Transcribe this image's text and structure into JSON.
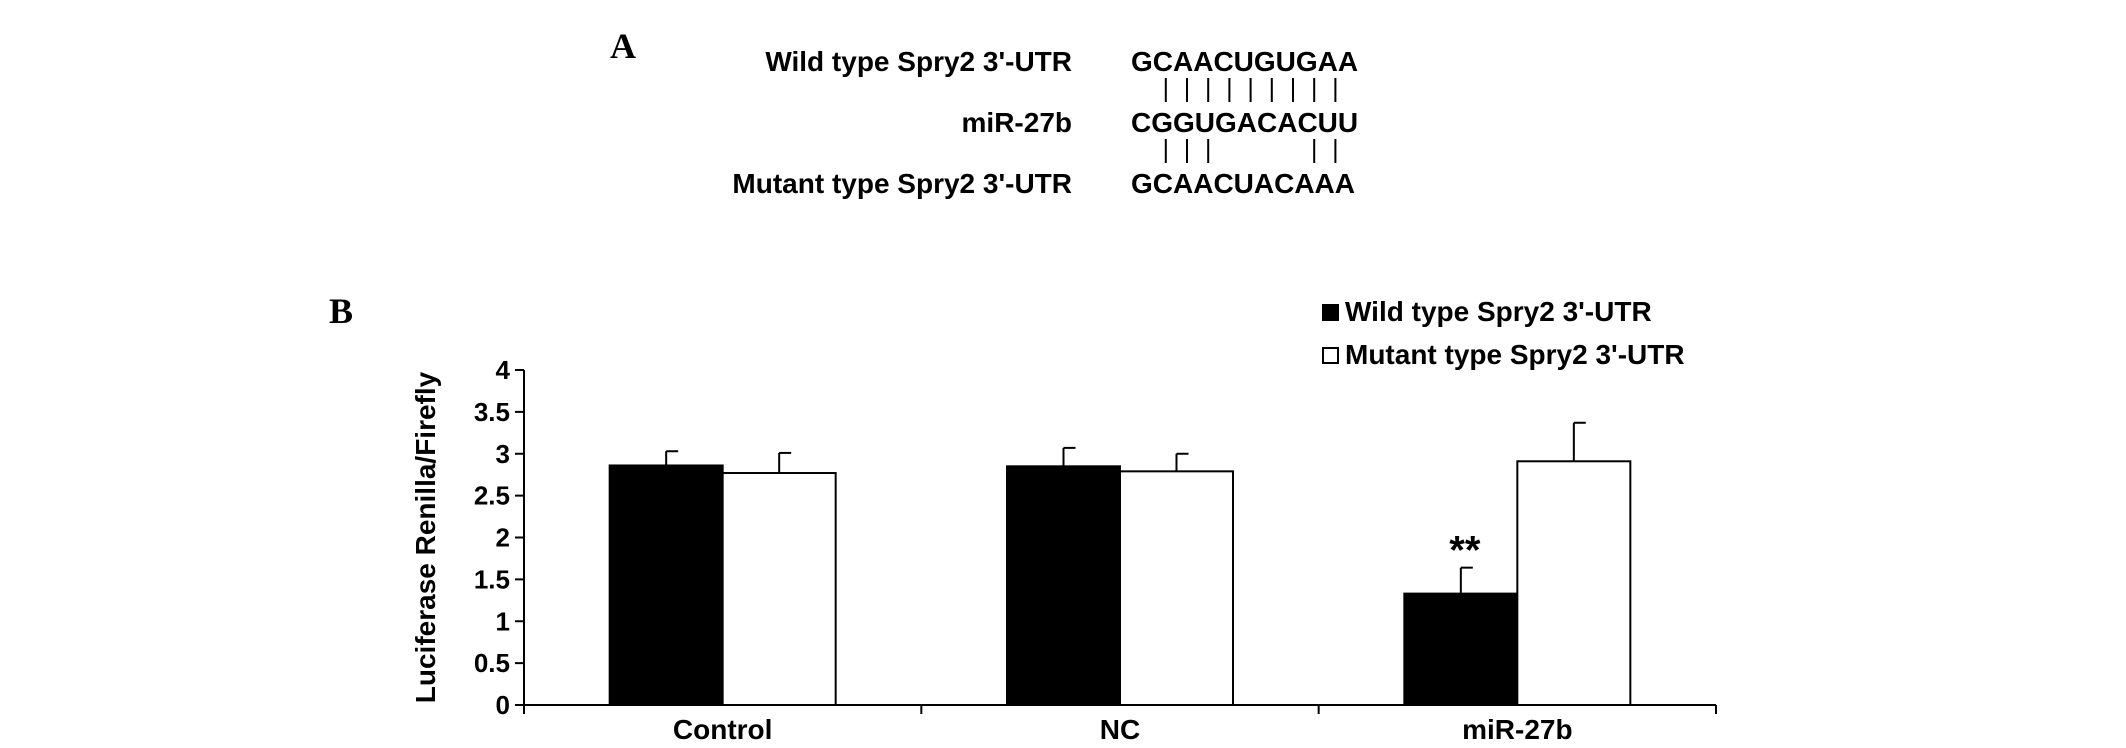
{
  "panel_a": {
    "label": "A",
    "rows": [
      {
        "label": "Wild type Spry2 3'-UTR",
        "sequence": "GCAACUGUGAA"
      },
      {
        "label": "miR-27b",
        "sequence": "CGGUGACACUU"
      },
      {
        "label": "Mutant type Spry2 3'-UTR",
        "sequence": "GCAACUACAAA"
      }
    ],
    "pairs_wild_mir": [
      2,
      3,
      4,
      5,
      6,
      7,
      8,
      9,
      10
    ],
    "pairs_mir_mutant": [
      2,
      3,
      4,
      9,
      10
    ]
  },
  "panel_b": {
    "label": "B"
  },
  "chart_data": {
    "type": "bar",
    "categories": [
      "Control",
      "NC",
      "miR-27b"
    ],
    "series": [
      {
        "name": "Wild type Spry2 3'-UTR",
        "values": [
          2.86,
          2.85,
          1.33
        ],
        "errors": [
          0.17,
          0.22,
          0.31
        ],
        "fill": "#000000"
      },
      {
        "name": "Mutant type Spry2 3'-UTR",
        "values": [
          2.77,
          2.79,
          2.91
        ],
        "errors": [
          0.24,
          0.21,
          0.46
        ],
        "fill": "#ffffff"
      }
    ],
    "ylabel": "Luciferase Renilla/Firefly",
    "xlabel": "",
    "ylim": [
      0,
      4
    ],
    "yticks": [
      "0",
      "0.5",
      "1",
      "1.5",
      "2",
      "2.5",
      "3",
      "3.5",
      "4"
    ],
    "ytick_values": [
      0,
      0.5,
      1,
      1.5,
      2,
      2.5,
      3,
      3.5,
      4
    ],
    "annotations": [
      {
        "category": "miR-27b",
        "series": 0,
        "text": "**"
      }
    ],
    "grid": false,
    "legend_position": "top-right"
  }
}
